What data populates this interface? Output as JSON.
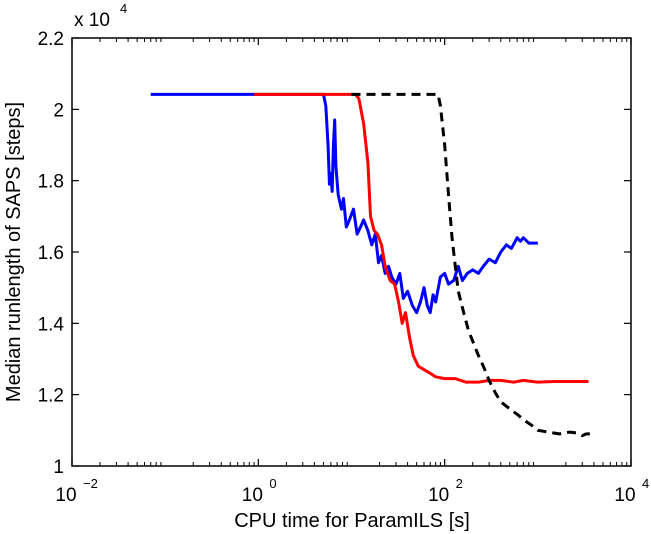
{
  "chart_data": {
    "type": "line",
    "title": "",
    "xlabel": "CPU time for ParamILS [s]",
    "ylabel": "Median runlength of SAPS [steps]",
    "x_scale": "log",
    "xlim": [
      0.01,
      10000
    ],
    "ylim": [
      10000,
      22000
    ],
    "x_ticks": [
      {
        "value": 0.01,
        "base": "10",
        "exp": "−2"
      },
      {
        "value": 1,
        "base": "10",
        "exp": "0"
      },
      {
        "value": 100,
        "base": "10",
        "exp": "2"
      },
      {
        "value": 10000,
        "base": "10",
        "exp": "4"
      }
    ],
    "y_ticks": [
      {
        "value": 10000,
        "label": "1"
      },
      {
        "value": 12000,
        "label": "1.2"
      },
      {
        "value": 14000,
        "label": "1.4"
      },
      {
        "value": 16000,
        "label": "1.6"
      },
      {
        "value": 18000,
        "label": "1.8"
      },
      {
        "value": 20000,
        "label": "2"
      },
      {
        "value": 22000,
        "label": "2.2"
      }
    ],
    "y_multiplier": {
      "base": "x 10",
      "exp": "4"
    },
    "grid": false,
    "legend": "none",
    "series": [
      {
        "color": "#0000ff",
        "style": "solid",
        "points": [
          [
            0.07,
            20420
          ],
          [
            0.9,
            20420
          ],
          [
            5.0,
            20420
          ],
          [
            5.3,
            20100
          ],
          [
            5.6,
            19000
          ],
          [
            5.8,
            17900
          ],
          [
            6.0,
            18200
          ],
          [
            6.2,
            17700
          ],
          [
            6.4,
            19000
          ],
          [
            6.6,
            19700
          ],
          [
            6.8,
            18400
          ],
          [
            7.2,
            17600
          ],
          [
            7.8,
            17200
          ],
          [
            8.2,
            17500
          ],
          [
            8.8,
            16700
          ],
          [
            9.5,
            16900
          ],
          [
            10.5,
            17200
          ],
          [
            11.5,
            16500
          ],
          [
            12.5,
            16700
          ],
          [
            13.5,
            16900
          ],
          [
            15.0,
            16600
          ],
          [
            16.5,
            16200
          ],
          [
            18.0,
            16500
          ],
          [
            19.5,
            15700
          ],
          [
            21.0,
            15900
          ],
          [
            23.0,
            15400
          ],
          [
            25.0,
            15600
          ],
          [
            27.0,
            15300
          ],
          [
            30.0,
            15100
          ],
          [
            33.0,
            15400
          ],
          [
            36.0,
            14700
          ],
          [
            40.0,
            14900
          ],
          [
            45.0,
            14500
          ],
          [
            50.0,
            14300
          ],
          [
            55.0,
            14600
          ],
          [
            60.0,
            15000
          ],
          [
            65.0,
            14500
          ],
          [
            70.0,
            14300
          ],
          [
            75.0,
            14800
          ],
          [
            80.0,
            14600
          ],
          [
            90.0,
            15300
          ],
          [
            100.0,
            15400
          ],
          [
            110.0,
            15100
          ],
          [
            125.0,
            15200
          ],
          [
            140.0,
            15600
          ],
          [
            155.0,
            15200
          ],
          [
            175.0,
            15400
          ],
          [
            200.0,
            15500
          ],
          [
            230.0,
            15400
          ],
          [
            260.0,
            15600
          ],
          [
            300.0,
            15800
          ],
          [
            350.0,
            15700
          ],
          [
            400.0,
            16000
          ],
          [
            460.0,
            16200
          ],
          [
            520.0,
            16100
          ],
          [
            600.0,
            16400
          ],
          [
            650.0,
            16300
          ],
          [
            700.0,
            16400
          ],
          [
            800.0,
            16250
          ],
          [
            900.0,
            16250
          ],
          [
            1000.0,
            16250
          ]
        ]
      },
      {
        "color": "#ff0000",
        "style": "solid",
        "points": [
          [
            0.9,
            20420
          ],
          [
            3.0,
            20420
          ],
          [
            11.0,
            20420
          ],
          [
            12.0,
            20300
          ],
          [
            13.5,
            19600
          ],
          [
            15.0,
            18500
          ],
          [
            16.0,
            17000
          ],
          [
            17.5,
            16600
          ],
          [
            19.0,
            16500
          ],
          [
            21.0,
            16200
          ],
          [
            23.0,
            15600
          ],
          [
            26.0,
            15200
          ],
          [
            29.0,
            15100
          ],
          [
            32.0,
            14600
          ],
          [
            35.0,
            14000
          ],
          [
            38.0,
            14300
          ],
          [
            42.0,
            13600
          ],
          [
            46.0,
            13100
          ],
          [
            52.0,
            12800
          ],
          [
            60.0,
            12700
          ],
          [
            70.0,
            12600
          ],
          [
            80.0,
            12500
          ],
          [
            100.0,
            12450
          ],
          [
            130.0,
            12450
          ],
          [
            170.0,
            12350
          ],
          [
            230.0,
            12350
          ],
          [
            300.0,
            12400
          ],
          [
            400.0,
            12400
          ],
          [
            550.0,
            12350
          ],
          [
            700.0,
            12400
          ],
          [
            1000.0,
            12350
          ],
          [
            1500.0,
            12370
          ],
          [
            2500.0,
            12370
          ],
          [
            3500.0,
            12370
          ]
        ]
      },
      {
        "color": "#000000",
        "style": "dashed",
        "points": [
          [
            10.0,
            20420
          ],
          [
            40.0,
            20420
          ],
          [
            85.0,
            20420
          ],
          [
            90.0,
            20100
          ],
          [
            100.0,
            19000
          ],
          [
            110.0,
            17600
          ],
          [
            120.0,
            16400
          ],
          [
            130.0,
            15600
          ],
          [
            140.0,
            14900
          ],
          [
            160.0,
            14300
          ],
          [
            180.0,
            13800
          ],
          [
            200.0,
            13500
          ],
          [
            230.0,
            13100
          ],
          [
            260.0,
            12800
          ],
          [
            300.0,
            12400
          ],
          [
            350.0,
            12050
          ],
          [
            400.0,
            11800
          ],
          [
            500.0,
            11600
          ],
          [
            600.0,
            11450
          ],
          [
            700.0,
            11300
          ],
          [
            850.0,
            11150
          ],
          [
            1000.0,
            11000
          ],
          [
            1300.0,
            10950
          ],
          [
            1700.0,
            10900
          ],
          [
            2200.0,
            10950
          ],
          [
            2700.0,
            10920
          ],
          [
            3000.0,
            10850
          ],
          [
            3300.0,
            10900
          ],
          [
            4000.0,
            10900
          ]
        ]
      }
    ]
  }
}
